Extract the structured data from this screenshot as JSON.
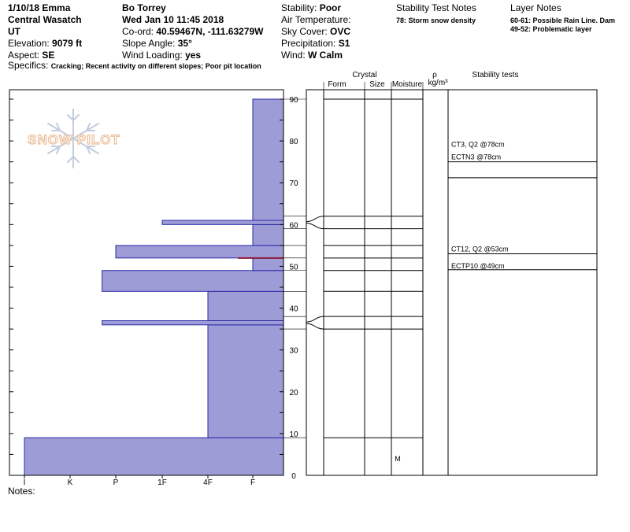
{
  "header": {
    "col1": {
      "date_location": "1/10/18 Emma",
      "range": "Central Wasatch",
      "state": "UT",
      "elevation_label": "Elevation: ",
      "elevation_value": "9079 ft",
      "aspect_label": "Aspect: ",
      "aspect_value": "SE"
    },
    "col2": {
      "observer": "Bo Torrey",
      "datetime": "Wed Jan 10 11:45 2018",
      "coord_label": "Co-ord: ",
      "coord_value": "40.59467N, -111.63279W",
      "slope_label": "Slope Angle: ",
      "slope_value": "35°",
      "wind_loading_label": "Wind Loading: ",
      "wind_loading_value": "yes"
    },
    "col3": {
      "stability_label": "Stability: ",
      "stability_value": "Poor",
      "air_temp_label": "Air Temperature:",
      "sky_cover_label": "Sky Cover: ",
      "sky_cover_value": "OVC",
      "precip_label": "Precipitation: ",
      "precip_value": "S1",
      "wind_label": "Wind:  ",
      "wind_value": "W Calm"
    },
    "stability_notes_title": "Stability Test Notes",
    "stability_notes": [
      "78: Storm snow density"
    ],
    "layer_notes_title": "Layer Notes",
    "layer_notes": [
      "60-61: Possible Rain Line. Dam",
      "49-52: Problematic layer"
    ],
    "specifics_label": "Specifics: ",
    "specifics_value": "Cracking; Recent activity on different slopes; Poor pit location"
  },
  "logo_text": "SNOW PILOT",
  "chart_data": {
    "type": "bar",
    "title": "",
    "ylabel": "",
    "ylim": [
      0,
      90
    ],
    "y_ticks": [
      0,
      10,
      20,
      30,
      40,
      50,
      60,
      70,
      80,
      90
    ],
    "hardness_scale": [
      "I",
      "K",
      "P",
      "1F",
      "4F",
      "F"
    ],
    "hardness_layers": [
      {
        "bottom": 0,
        "top": 9,
        "hardness_index": 0.0
      },
      {
        "bottom": 9,
        "top": 36,
        "hardness_index": 4.0
      },
      {
        "bottom": 36,
        "top": 37,
        "hardness_index": 1.7
      },
      {
        "bottom": 37,
        "top": 44,
        "hardness_index": 4.0
      },
      {
        "bottom": 44,
        "top": 49,
        "hardness_index": 1.7
      },
      {
        "bottom": 49,
        "top": 52,
        "hardness_index": 5.0
      },
      {
        "bottom": 52,
        "top": 55,
        "hardness_index": 2.0
      },
      {
        "bottom": 55,
        "top": 60,
        "hardness_index": 5.0
      },
      {
        "bottom": 60,
        "top": 61,
        "hardness_index": 3.0
      },
      {
        "bottom": 61,
        "top": 90,
        "hardness_index": 5.0
      }
    ],
    "problem_layer_line": 52,
    "layer_boundaries": [
      9,
      35,
      38,
      44,
      49,
      52,
      55,
      59,
      62,
      90
    ],
    "kinks": [
      {
        "from": 35,
        "to": 38
      },
      {
        "from": 59,
        "to": 62
      }
    ],
    "moisture": [
      {
        "depth": 4,
        "value": "M"
      }
    ],
    "stability_tests": [
      {
        "depth": 78,
        "label": "CT3, Q2 @78cm"
      },
      {
        "depth": 75,
        "label": "ECTN3 @78cm"
      },
      {
        "depth": 53,
        "label": "CT12, Q2 @53cm"
      },
      {
        "depth": 49,
        "label": "ECTP10 @49cm"
      }
    ],
    "stability_test_lines": [
      75,
      71.2,
      53,
      49.2
    ],
    "columns": {
      "crystal": "Crystal",
      "form": "Form",
      "size": "Size",
      "moisture": "Moisture",
      "rho": "ρ",
      "rho_unit": "kg/m³",
      "stability_tests": "Stability tests"
    },
    "colors": {
      "bar_fill": "#9e9cd6",
      "bar_stroke": "#2a2aa8",
      "problem_line": "#8b1a3a"
    }
  },
  "notes_label": "Notes:"
}
